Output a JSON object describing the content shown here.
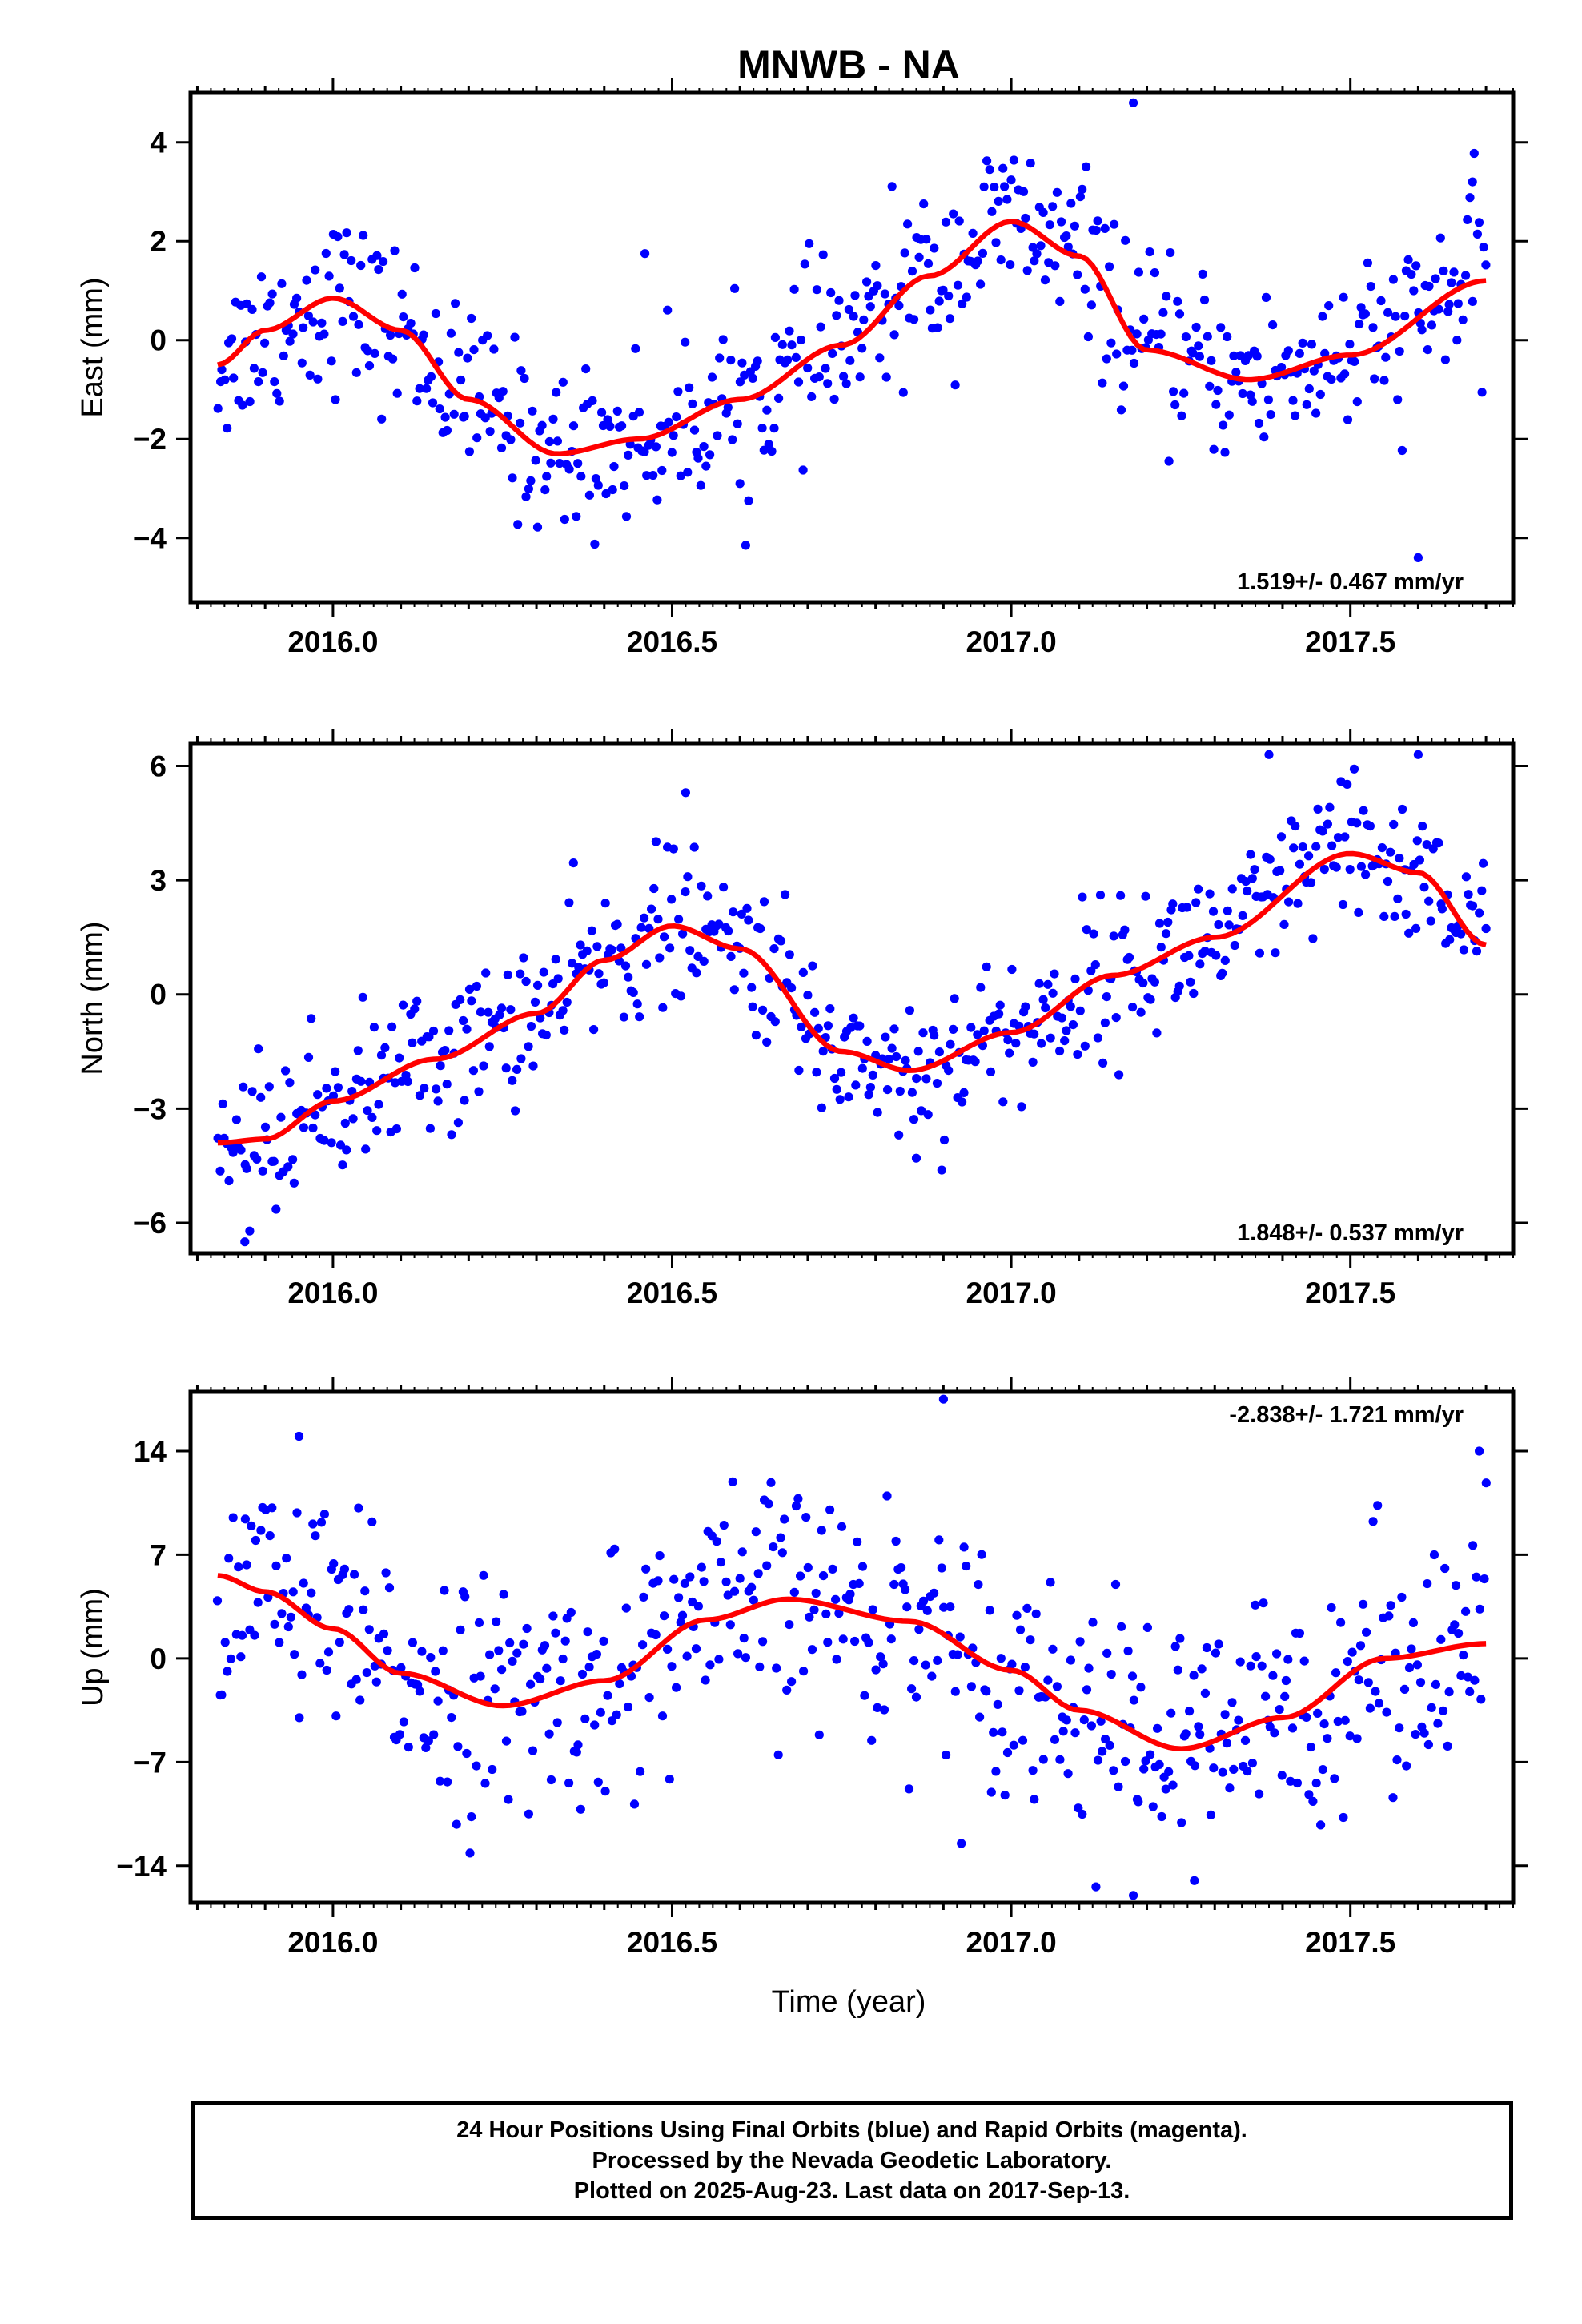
{
  "title": "MNWB - NA",
  "xlabel": "Time (year)",
  "colors": {
    "points": "#0000ff",
    "fit": "#ff0000",
    "frame": "#000000"
  },
  "footer": {
    "line1": "24 Hour Positions Using Final Orbits (blue) and Rapid Orbits (magenta).",
    "line2": "Processed by the Nevada Geodetic Laboratory.",
    "line3": "Plotted on 2025-Aug-23. Last data on 2017-Sep-13."
  },
  "chart_data": [
    {
      "type": "scatter",
      "name": "east",
      "ylabel": "East (mm)",
      "rate_label": "1.519+/- 0.467 mm/yr",
      "rate_position": "bottom-right",
      "xlim": [
        2015.79,
        2017.74
      ],
      "ylim": [
        -5.3,
        5.0
      ],
      "yticks": [
        -4,
        -2,
        0,
        2,
        4
      ],
      "yticklabels": [
        "−4",
        "−2",
        "0",
        "2",
        "4"
      ],
      "xticks": [
        2016.0,
        2016.5,
        2017.0,
        2017.5
      ],
      "xticklabels": [
        "2016.0",
        "2016.5",
        "2017.0",
        "2017.5"
      ],
      "fit_curve": {
        "x": [
          2015.83,
          2015.9,
          2016.0,
          2016.1,
          2016.2,
          2016.33,
          2016.45,
          2016.6,
          2016.75,
          2016.88,
          2017.0,
          2017.1,
          2017.2,
          2017.35,
          2017.5,
          2017.7
        ],
        "y": [
          -0.5,
          0.2,
          0.85,
          0.2,
          -1.2,
          -2.3,
          -2.0,
          -1.2,
          -0.1,
          1.3,
          2.4,
          1.7,
          -0.2,
          -0.8,
          -0.3,
          1.2
        ]
      },
      "points": {
        "x_start": 2015.83,
        "x_end": 2017.7,
        "count": 560,
        "scatter_mm": 0.85,
        "outliers": [
          [
            2017.18,
            4.8
          ],
          [
            2017.6,
            -4.4
          ],
          [
            2017.68,
            3.2
          ],
          [
            2016.46,
            1.75
          ],
          [
            2016.6,
            -2.9
          ]
        ]
      }
    },
    {
      "type": "scatter",
      "name": "north",
      "ylabel": "North (mm)",
      "rate_label": "1.848+/- 0.537 mm/yr",
      "rate_position": "bottom-right",
      "xlim": [
        2015.79,
        2017.74
      ],
      "ylim": [
        -6.8,
        6.6
      ],
      "yticks": [
        -6,
        -3,
        0,
        3,
        6
      ],
      "yticklabels": [
        "−6",
        "−3",
        "0",
        "3",
        "6"
      ],
      "xticks": [
        2016.0,
        2016.5,
        2017.0,
        2017.5
      ],
      "xticklabels": [
        "2016.0",
        "2016.5",
        "2017.0",
        "2017.5"
      ],
      "fit_curve": {
        "x": [
          2015.83,
          2015.9,
          2016.0,
          2016.15,
          2016.3,
          2016.4,
          2016.5,
          2016.6,
          2016.75,
          2016.85,
          2017.0,
          2017.15,
          2017.3,
          2017.5,
          2017.6,
          2017.7
        ],
        "y": [
          -3.9,
          -3.8,
          -2.8,
          -1.7,
          -0.5,
          0.9,
          1.8,
          1.2,
          -1.5,
          -2.0,
          -1.0,
          0.5,
          1.5,
          3.7,
          3.2,
          1.3
        ]
      },
      "points": {
        "x_start": 2015.83,
        "x_end": 2017.7,
        "count": 560,
        "scatter_mm": 1.0,
        "outliers": [
          [
            2016.52,
            5.3
          ],
          [
            2017.38,
            6.3
          ],
          [
            2017.6,
            6.3
          ],
          [
            2015.87,
            -6.5
          ],
          [
            2016.86,
            -4.3
          ]
        ]
      }
    },
    {
      "type": "scatter",
      "name": "up",
      "ylabel": "Up (mm)",
      "rate_label": "-2.838+/- 1.721 mm/yr",
      "rate_position": "top-right",
      "xlim": [
        2015.79,
        2017.74
      ],
      "ylim": [
        -16.5,
        18.0
      ],
      "yticks": [
        -14,
        -7,
        0,
        7,
        14
      ],
      "yticklabels": [
        "−14",
        "−7",
        "0",
        "7",
        "14"
      ],
      "xticks": [
        2016.0,
        2016.5,
        2017.0,
        2017.5
      ],
      "xticklabels": [
        "2016.0",
        "2016.5",
        "2017.0",
        "2017.5"
      ],
      "fit_curve": {
        "x": [
          2015.83,
          2015.9,
          2016.0,
          2016.1,
          2016.25,
          2016.4,
          2016.55,
          2016.67,
          2016.85,
          2017.0,
          2017.1,
          2017.25,
          2017.4,
          2017.55,
          2017.7
        ],
        "y": [
          5.6,
          4.5,
          2.0,
          -1.0,
          -3.2,
          -1.5,
          2.6,
          4.0,
          2.5,
          -0.8,
          -3.5,
          -6.1,
          -4.0,
          0.0,
          1.0
        ]
      },
      "points": {
        "x_start": 2015.83,
        "x_end": 2017.7,
        "count": 560,
        "scatter_mm": 4.0,
        "outliers": [
          [
            2016.9,
            17.5
          ],
          [
            2015.95,
            15.0
          ],
          [
            2017.18,
            -16.0
          ],
          [
            2017.27,
            -15.0
          ],
          [
            2017.69,
            14.0
          ]
        ]
      }
    }
  ]
}
